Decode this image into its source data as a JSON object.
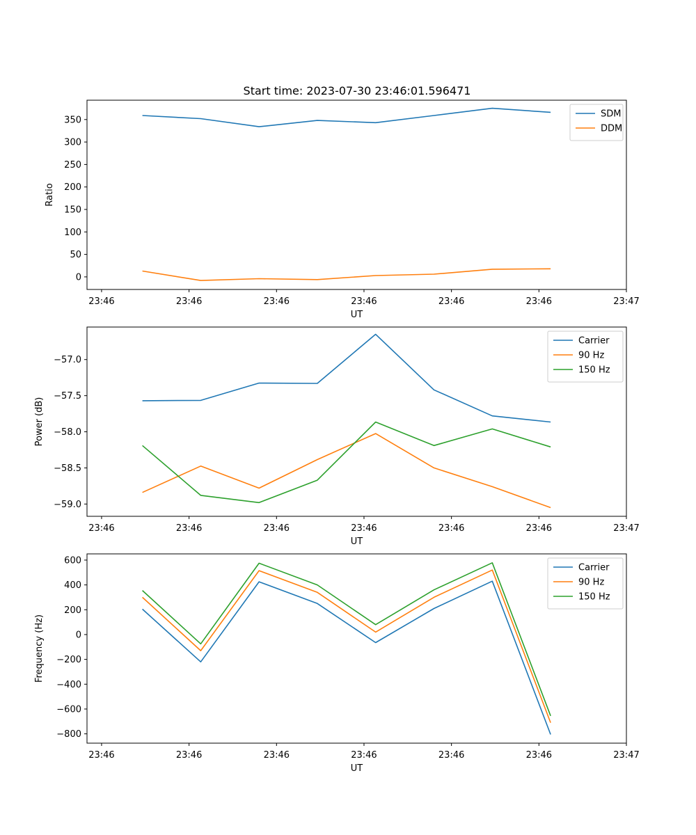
{
  "title": "Start time: 2023-07-30 23:46:01.596471",
  "colors": {
    "blue": "#1f77b4",
    "orange": "#ff7f0e",
    "green": "#2ca02c"
  },
  "chart_data": [
    {
      "type": "line",
      "title": "Start time: 2023-07-30 23:46:01.596471",
      "xlabel": "UT",
      "ylabel": "Ratio",
      "xlim": [
        -0.95,
        8.3
      ],
      "ylim": [
        -28,
        393
      ],
      "x": [
        0,
        1,
        2,
        3,
        4,
        5,
        6,
        7
      ],
      "x_ticks": [
        -0.7,
        0.8,
        2.3,
        3.8,
        5.3,
        6.8,
        8.3
      ],
      "x_tick_labels": [
        "23:46",
        "23:46",
        "23:46",
        "23:46",
        "23:46",
        "23:46",
        "23:47"
      ],
      "y_ticks": [
        0,
        50,
        100,
        150,
        200,
        250,
        300,
        350
      ],
      "y_tick_labels": [
        "0",
        "50",
        "100",
        "150",
        "200",
        "250",
        "300",
        "350"
      ],
      "legend_position": "top-right",
      "series": [
        {
          "name": "SDM",
          "color": "#1f77b4",
          "values": [
            359,
            352,
            334,
            348,
            343,
            359,
            375,
            366
          ]
        },
        {
          "name": "DDM",
          "color": "#ff7f0e",
          "values": [
            13,
            -8,
            -4,
            -6,
            3,
            6,
            17,
            18
          ]
        }
      ]
    },
    {
      "type": "line",
      "title": "",
      "xlabel": "UT",
      "ylabel": "Power (dB)",
      "xlim": [
        -0.95,
        8.3
      ],
      "ylim": [
        -59.17,
        -56.55
      ],
      "x": [
        0,
        1,
        2,
        3,
        4,
        5,
        6,
        7
      ],
      "x_ticks": [
        -0.7,
        0.8,
        2.3,
        3.8,
        5.3,
        6.8,
        8.3
      ],
      "x_tick_labels": [
        "23:46",
        "23:46",
        "23:46",
        "23:46",
        "23:46",
        "23:46",
        "23:47"
      ],
      "y_ticks": [
        -59.0,
        -58.5,
        -58.0,
        -57.5,
        -57.0
      ],
      "y_tick_labels": [
        "−59.0",
        "−58.5",
        "−58.0",
        "−57.5",
        "−57.0"
      ],
      "legend_position": "top-right",
      "series": [
        {
          "name": "Carrier",
          "color": "#1f77b4",
          "values": [
            -57.57,
            -57.565,
            -57.325,
            -57.33,
            -56.65,
            -57.42,
            -57.78,
            -57.865
          ]
        },
        {
          "name": "90 Hz",
          "color": "#ff7f0e",
          "values": [
            -58.84,
            -58.475,
            -58.78,
            -58.385,
            -58.025,
            -58.5,
            -58.76,
            -59.05
          ]
        },
        {
          "name": "150 Hz",
          "color": "#2ca02c",
          "values": [
            -58.19,
            -58.88,
            -58.98,
            -58.67,
            -57.865,
            -58.19,
            -57.96,
            -58.21
          ]
        }
      ]
    },
    {
      "type": "line",
      "title": "",
      "xlabel": "UT",
      "ylabel": "Frequency (Hz)",
      "xlim": [
        -0.95,
        8.3
      ],
      "ylim": [
        -875,
        650
      ],
      "x": [
        0,
        1,
        2,
        3,
        4,
        5,
        6,
        7
      ],
      "x_ticks": [
        -0.7,
        0.8,
        2.3,
        3.8,
        5.3,
        6.8,
        8.3
      ],
      "x_tick_labels": [
        "23:46",
        "23:46",
        "23:46",
        "23:46",
        "23:46",
        "23:46",
        "23:47"
      ],
      "y_ticks": [
        -800,
        -600,
        -400,
        -200,
        0,
        200,
        400,
        600
      ],
      "y_tick_labels": [
        "−800",
        "−600",
        "−400",
        "−200",
        "0",
        "200",
        "400",
        "600"
      ],
      "legend_position": "top-right",
      "series": [
        {
          "name": "Carrier",
          "color": "#1f77b4",
          "values": [
            205,
            -220,
            425,
            250,
            -65,
            210,
            430,
            -805
          ]
        },
        {
          "name": "90 Hz",
          "color": "#ff7f0e",
          "values": [
            300,
            -130,
            515,
            340,
            20,
            300,
            520,
            -710
          ]
        },
        {
          "name": "150 Hz",
          "color": "#2ca02c",
          "values": [
            355,
            -75,
            575,
            400,
            80,
            360,
            578,
            -655
          ]
        }
      ]
    }
  ]
}
